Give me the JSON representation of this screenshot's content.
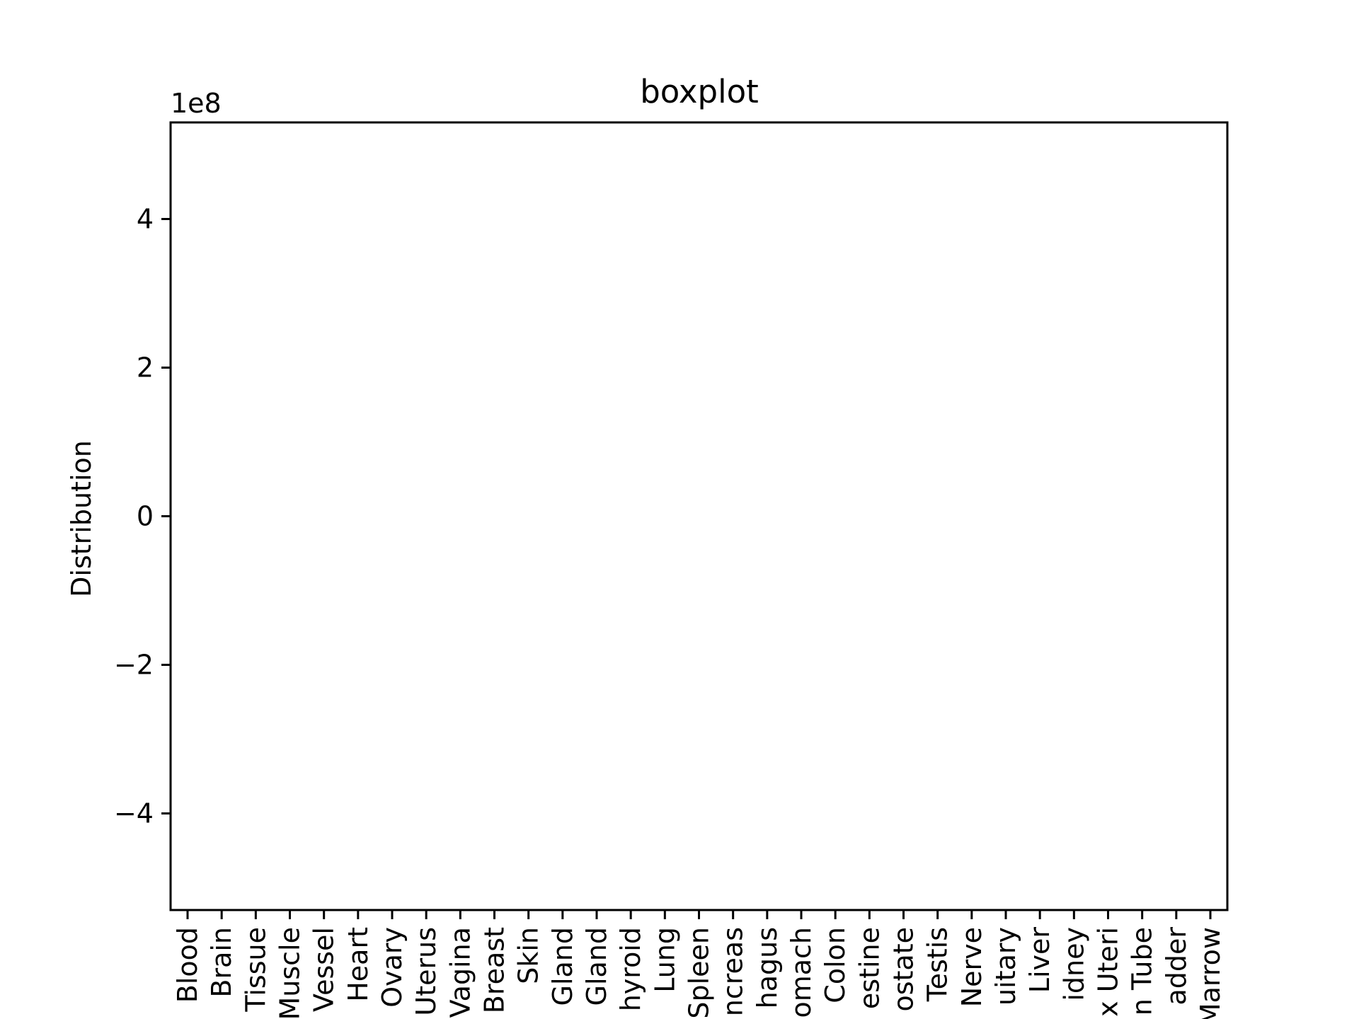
{
  "chart_data": {
    "type": "box",
    "title": "boxplot",
    "xlabel": "",
    "ylabel": "Distribution",
    "y_offset_label": "1e8",
    "y_scale_factor": 100000000,
    "ylim": [
      -530000000,
      530000000
    ],
    "yticks": [
      -400000000,
      -200000000,
      0,
      200000000,
      400000000
    ],
    "ytick_labels": [
      "−4",
      "−2",
      "0",
      "2",
      "4"
    ],
    "grid": false,
    "categories": [
      "Blood",
      "Brain",
      "Tissue",
      "Muscle",
      "Vessel",
      "Heart",
      "Ovary",
      "Uterus",
      "Vagina",
      "Breast",
      "Skin",
      "Gland",
      "Gland",
      "hyroid",
      "Lung",
      "Spleen",
      "ncreas",
      "hagus",
      "omach",
      "Colon",
      "estine",
      "ostate",
      "Testis",
      "Nerve",
      "uitary",
      "Liver",
      "idney",
      "x Uteri",
      "n Tube",
      "adder",
      "Marrow"
    ],
    "series": []
  }
}
